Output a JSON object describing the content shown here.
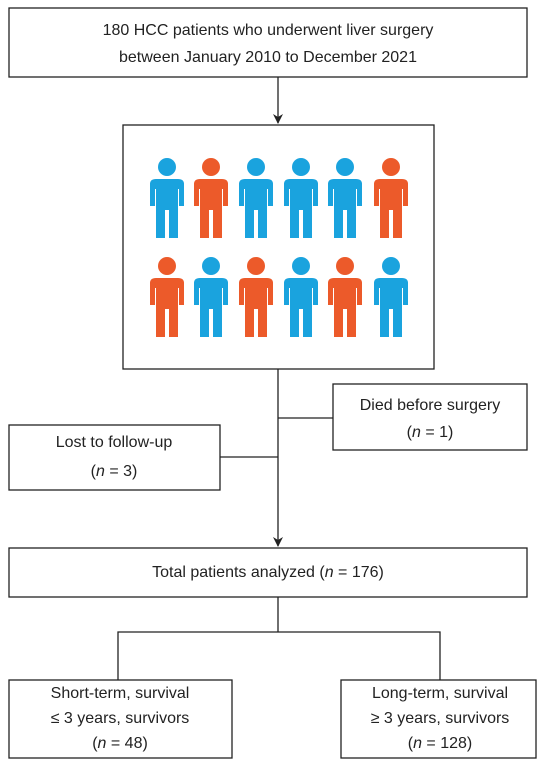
{
  "nodes": [
    {
      "lines": [
        [
          {
            "text": "180 HCC patients who underwent liver surgery"
          }
        ],
        [
          {
            "text": "between January 2010 to December 2021"
          }
        ]
      ]
    },
    {
      "lines": [
        [
          {
            "text": "Died before surgery"
          }
        ],
        [
          {
            "text": "("
          },
          {
            "text": "n",
            "italic": true
          },
          {
            "text": " = 1)"
          }
        ]
      ]
    },
    {
      "lines": [
        [
          {
            "text": "Lost to follow-up"
          }
        ],
        [
          {
            "text": "("
          },
          {
            "text": "n",
            "italic": true
          },
          {
            "text": " = 3)"
          }
        ]
      ]
    },
    {
      "lines": [
        [
          {
            "text": "Total patients analyzed ("
          },
          {
            "text": "n",
            "italic": true
          },
          {
            "text": " = 176)"
          }
        ]
      ]
    },
    {
      "lines": [
        [
          {
            "text": "Short-term, survival"
          }
        ],
        [
          {
            "text": "≤ 3 years, survivors"
          }
        ],
        [
          {
            "text": "("
          },
          {
            "text": "n",
            "italic": true
          },
          {
            "text": " = 48)"
          }
        ]
      ]
    },
    {
      "lines": [
        [
          {
            "text": "Long-term, survival"
          }
        ],
        [
          {
            "text": "≥ 3 years, survivors"
          }
        ],
        [
          {
            "text": "("
          },
          {
            "text": "n",
            "italic": true
          },
          {
            "text": " = 128)"
          }
        ]
      ]
    }
  ]
}
